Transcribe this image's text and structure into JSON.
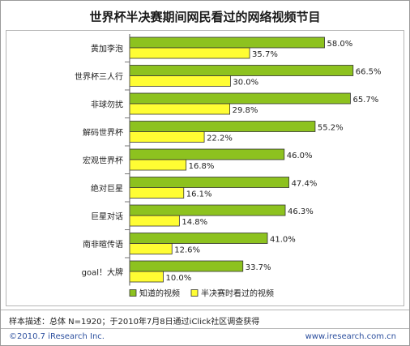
{
  "chart_data": {
    "type": "bar",
    "orientation": "horizontal",
    "title": "世界杯半决赛期间网民看过的网络视频节目",
    "categories": [
      "黄加李泡",
      "世界杯三人行",
      "非球勿扰",
      "解码世界杯",
      "宏观世界杯",
      "绝对巨星",
      "巨星对话",
      "南非暄传语",
      "goal！大牌"
    ],
    "series": [
      {
        "name": "知道的视频",
        "color": "#8dc21f",
        "values": [
          58.0,
          66.5,
          65.7,
          55.2,
          46.0,
          47.4,
          46.3,
          41.0,
          33.7
        ]
      },
      {
        "name": "半决赛时看过的视频",
        "color": "#fffd33",
        "values": [
          35.7,
          30.0,
          29.8,
          22.2,
          16.8,
          16.1,
          14.8,
          12.6,
          10.0
        ]
      }
    ],
    "value_suffix": "%",
    "xlim": [
      0,
      68
    ],
    "grid": false,
    "legend_position": "bottom-left"
  },
  "footer": {
    "sample_note": "样本描述：总体 N=1920；于2010年7月8日通过iClick社区调查获得",
    "copyright": "©2010.7 iResearch Inc.",
    "url": "www.iresearch.com.cn"
  }
}
